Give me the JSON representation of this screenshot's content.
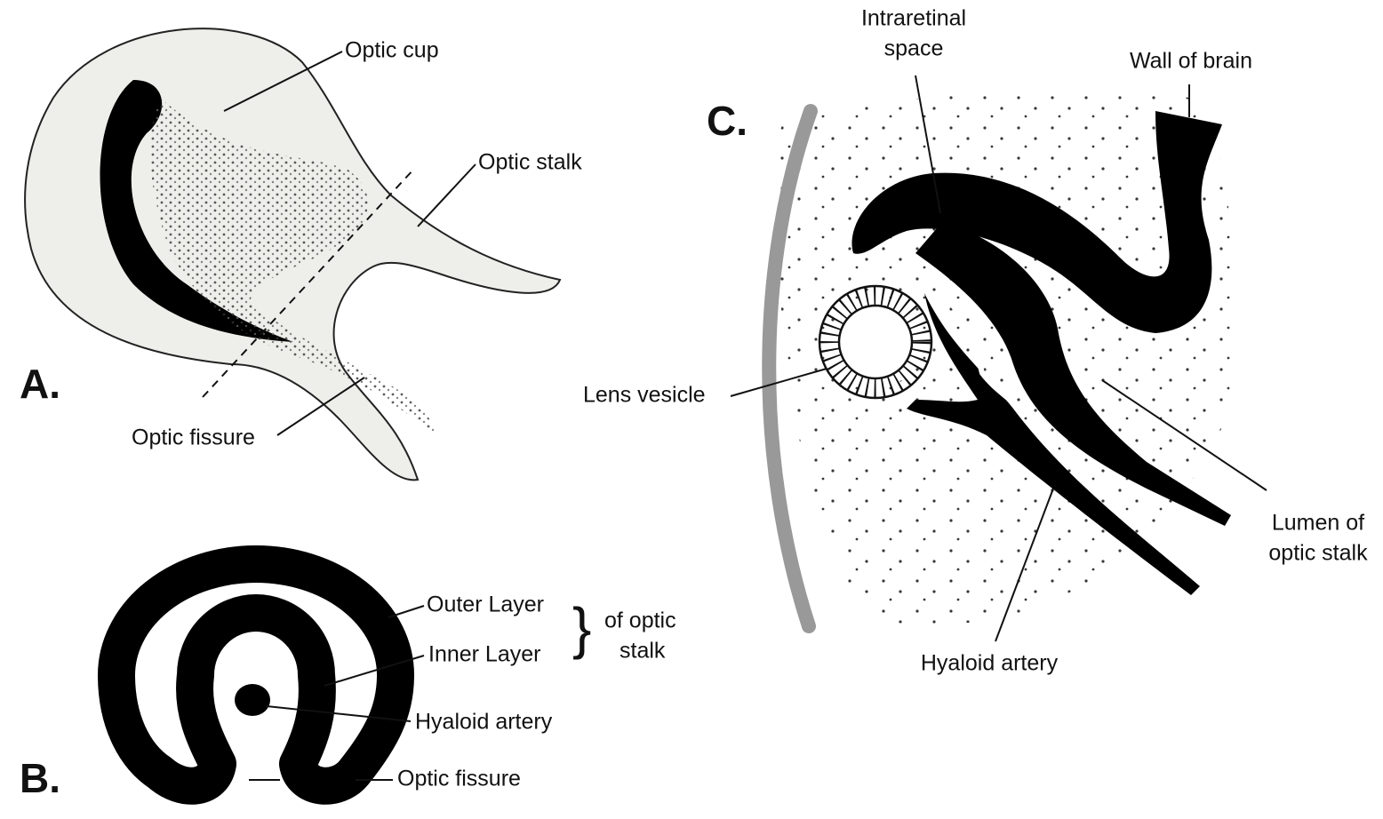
{
  "panels": [
    {
      "label": "A.",
      "annotations": [
        "Optic cup",
        "Optic stalk",
        "Optic fissure"
      ]
    },
    {
      "label": "B.",
      "annotations": [
        "Outer Layer",
        "Inner Layer",
        "Hyaloid artery",
        "Optic fissure"
      ],
      "brace_text": [
        "of optic",
        "stalk"
      ]
    },
    {
      "label": "C.",
      "annotations": [
        [
          "Intraretinal",
          "space"
        ],
        "Wall of brain",
        "Lens vesicle",
        [
          "Lumen of",
          "optic stalk"
        ],
        "Hyaloid artery"
      ]
    }
  ]
}
